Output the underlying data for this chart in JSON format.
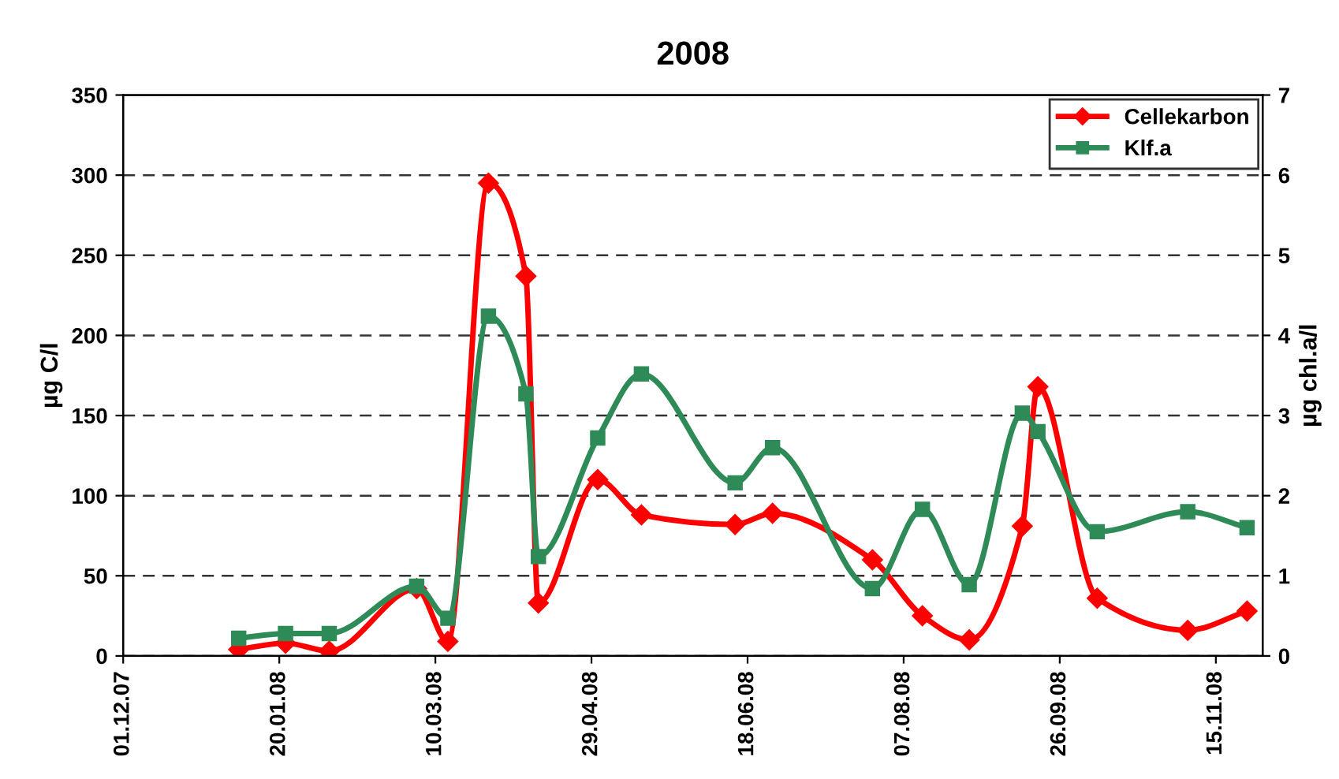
{
  "chart_data": {
    "type": "line",
    "title": "2008",
    "ylabel": "µg C/l",
    "y2label": "µg chl.a/l",
    "x": [
      "2008-01-07",
      "2008-01-22",
      "2008-02-05",
      "2008-03-04",
      "2008-03-14",
      "2008-03-27",
      "2008-04-08",
      "2008-04-12",
      "2008-05-01",
      "2008-05-15",
      "2008-06-14",
      "2008-06-26",
      "2008-07-28",
      "2008-08-13",
      "2008-08-28",
      "2008-09-14",
      "2008-09-19",
      "2008-10-08",
      "2008-11-06",
      "2008-11-25"
    ],
    "series": [
      {
        "name": "Cellekarbon",
        "color": "#ff0000",
        "marker": "diamond",
        "values": [
          4,
          8,
          3,
          42,
          9,
          295,
          237,
          33,
          110,
          88,
          82,
          89,
          60,
          25,
          10,
          81,
          168,
          36,
          16,
          28
        ]
      },
      {
        "name": "Klf.a",
        "color": "#2e8b57",
        "marker": "square",
        "axis": "y2",
        "values": [
          0.22,
          0.28,
          0.28,
          0.87,
          0.47,
          4.24,
          3.27,
          1.24,
          2.72,
          3.52,
          2.16,
          2.6,
          0.84,
          1.83,
          0.89,
          3.03,
          2.8,
          1.55,
          1.8,
          1.6
        ]
      }
    ],
    "xlim": [
      "2007-12-01",
      "2008-11-30"
    ],
    "xticks": [
      {
        "value": "2007-12-01",
        "label": "01.12.07"
      },
      {
        "value": "2008-01-20",
        "label": "20.01.08"
      },
      {
        "value": "2008-03-10",
        "label": "10.03.08"
      },
      {
        "value": "2008-04-29",
        "label": "29.04.08"
      },
      {
        "value": "2008-06-18",
        "label": "18.06.08"
      },
      {
        "value": "2008-08-07",
        "label": "07.08.08"
      },
      {
        "value": "2008-09-26",
        "label": "26.09.08"
      },
      {
        "value": "2008-11-15",
        "label": "15.11.08"
      }
    ],
    "ylim": [
      0,
      350
    ],
    "yticks": [
      0,
      50,
      100,
      150,
      200,
      250,
      300,
      350
    ],
    "y2lim": [
      0,
      7
    ],
    "y2ticks": [
      0,
      1,
      2,
      3,
      4,
      5,
      6,
      7
    ],
    "grid": "y",
    "legend": "top right",
    "line_style": "solid"
  }
}
